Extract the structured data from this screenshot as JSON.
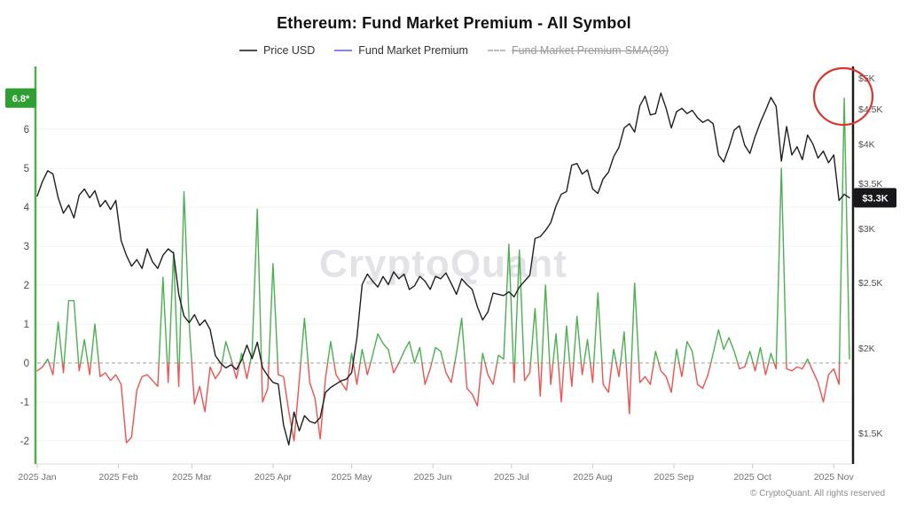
{
  "header": {
    "title": "Ethereum: Fund Market Premium - All Symbol"
  },
  "legend": {
    "items": [
      {
        "label": "Price USD",
        "color": "#4d4d4d",
        "style": "solid",
        "enabled": true
      },
      {
        "label": "Fund Market Premium",
        "color": "#8583ef",
        "style": "solid",
        "enabled": true
      },
      {
        "label": "Fund Market Premium-SMA(30)",
        "color": "#bdbdbd",
        "style": "dashed",
        "enabled": false
      }
    ]
  },
  "watermark": {
    "text": "CryptoQuant"
  },
  "footer": {
    "copyright": "© CryptoQuant. All rights reserved"
  },
  "badges": {
    "premium_peak": {
      "label": "6.8*",
      "value": 6.8,
      "bg": "#2f9e33",
      "fg": "#ffffff"
    },
    "price_last": {
      "label": "$3.3K",
      "value_usd": 3330,
      "bg": "#17171c",
      "fg": "#ffffff"
    }
  },
  "annotations": {
    "highlight_circle": {
      "target": "final premium spike",
      "color": "#e03131"
    }
  },
  "chart_data": {
    "type": "line",
    "title": "Ethereum: Fund Market Premium - All Symbol",
    "x_start_date": "2025-01-01",
    "x_end_date": "2025-11-07",
    "x_interval_days": 2,
    "total_days": 310,
    "x_tick_labels": [
      "2025 Jan",
      "2025 Feb",
      "2025 Mar",
      "2025 Apr",
      "2025 May",
      "2025 Jun",
      "2025 Jul",
      "2025 Aug",
      "2025 Sep",
      "2025 Oct",
      "2025 Nov"
    ],
    "x_tick_day_offsets": [
      0,
      31,
      59,
      90,
      120,
      151,
      181,
      212,
      243,
      273,
      304
    ],
    "grid": true,
    "legend_position": "top",
    "left_axis": {
      "label": "Fund Market Premium",
      "ticks": [
        6,
        5,
        4,
        3,
        2,
        1,
        0,
        -1,
        -2
      ],
      "range": [
        -2.6,
        7.4
      ],
      "zero_line_dashed": true,
      "axis_color": "#53ae4c",
      "max_badge": "6.8*"
    },
    "right_axis": {
      "label": "Price USD",
      "scale": "log",
      "tick_labels": [
        "$5K",
        "$4.5K",
        "$4K",
        "$3.5K",
        "$3K",
        "$2.5K",
        "$2K",
        "$1.5K"
      ],
      "tick_values_usd": [
        5000,
        4500,
        4000,
        3500,
        3000,
        2500,
        2000,
        1500
      ],
      "axis_color": "#1b1b1b",
      "last_badge": "$3.3K"
    },
    "series": [
      {
        "name": "Price USD",
        "axis": "right",
        "color": "#1f1f1f",
        "values": [
          3350,
          3520,
          3650,
          3610,
          3330,
          3160,
          3250,
          3110,
          3360,
          3430,
          3330,
          3410,
          3230,
          3300,
          3200,
          3300,
          2880,
          2740,
          2640,
          2700,
          2620,
          2800,
          2680,
          2620,
          2740,
          2800,
          2760,
          2400,
          2230,
          2180,
          2240,
          2160,
          2200,
          2130,
          1950,
          1900,
          1870,
          1890,
          1860,
          1920,
          2020,
          1930,
          2040,
          1870,
          1820,
          1780,
          1770,
          1540,
          1440,
          1610,
          1510,
          1590,
          1560,
          1550,
          1580,
          1720,
          1750,
          1770,
          1790,
          1800,
          1840,
          2070,
          2480,
          2570,
          2510,
          2460,
          2550,
          2480,
          2590,
          2530,
          2570,
          2440,
          2470,
          2550,
          2510,
          2440,
          2550,
          2530,
          2580,
          2490,
          2400,
          2530,
          2480,
          2440,
          2300,
          2200,
          2260,
          2410,
          2400,
          2390,
          2420,
          2380,
          2460,
          2510,
          2560,
          2900,
          2920,
          2980,
          3060,
          3240,
          3370,
          3400,
          3720,
          3740,
          3610,
          3660,
          3430,
          3380,
          3550,
          3630,
          3830,
          3950,
          4220,
          4280,
          4160,
          4550,
          4700,
          4410,
          4430,
          4750,
          4510,
          4220,
          4460,
          4510,
          4430,
          4480,
          4370,
          4300,
          4340,
          4280,
          3850,
          3760,
          3950,
          4190,
          4250,
          3980,
          3870,
          4100,
          4300,
          4480,
          4680,
          4540,
          3770,
          4240,
          3850,
          3960,
          3790,
          4120,
          4000,
          3810,
          3900,
          3750,
          3850,
          3300,
          3370,
          3330
        ]
      },
      {
        "name": "Fund Market Premium",
        "axis": "left",
        "color_positive": "#4caf50",
        "color_negative": "#ef5350",
        "values": [
          -0.2,
          -0.1,
          0.1,
          -0.3,
          1.05,
          -0.25,
          1.6,
          1.6,
          -0.2,
          0.6,
          -0.3,
          1.0,
          -0.35,
          -0.25,
          -0.45,
          -0.3,
          -0.55,
          -2.05,
          -1.9,
          -0.7,
          -0.35,
          -0.3,
          -0.45,
          -0.6,
          2.2,
          -0.5,
          2.85,
          -0.6,
          4.4,
          1.0,
          -1.05,
          -0.6,
          -1.25,
          -0.1,
          -0.4,
          -0.2,
          0.55,
          0.1,
          -0.4,
          0.25,
          -0.4,
          0.25,
          3.95,
          -1.0,
          -0.65,
          2.55,
          -0.3,
          -0.35,
          -1.25,
          -2.0,
          -0.45,
          1.15,
          -0.5,
          -0.9,
          -1.95,
          -0.4,
          0.55,
          -0.3,
          -0.5,
          -0.7,
          0.25,
          -0.55,
          0.35,
          -0.3,
          0.2,
          0.75,
          0.5,
          0.35,
          -0.25,
          0.0,
          0.3,
          0.55,
          0.0,
          0.4,
          -0.55,
          -0.15,
          0.4,
          0.3,
          -0.25,
          -0.5,
          0.25,
          1.15,
          -0.65,
          -0.8,
          -1.1,
          0.25,
          -0.3,
          -0.55,
          0.2,
          0.1,
          3.05,
          -0.5,
          2.9,
          -0.45,
          -0.25,
          1.4,
          -0.85,
          2.0,
          -0.55,
          0.75,
          -1.0,
          0.95,
          -0.6,
          1.2,
          -0.3,
          0.6,
          -0.5,
          1.8,
          -0.55,
          -0.75,
          0.35,
          -0.35,
          0.8,
          -1.3,
          2.05,
          -0.5,
          -0.35,
          -0.55,
          0.3,
          -0.2,
          -0.35,
          -0.75,
          0.35,
          -0.35,
          0.55,
          0.3,
          -0.55,
          -0.65,
          -0.3,
          0.25,
          0.85,
          0.35,
          0.65,
          0.3,
          -0.15,
          -0.1,
          0.3,
          -0.2,
          0.4,
          -0.3,
          0.25,
          -0.15,
          5.0,
          -0.15,
          -0.2,
          -0.1,
          -0.15,
          0.1,
          -0.2,
          -0.5,
          -1.0,
          -0.3,
          -0.15,
          -0.55,
          6.8,
          0.1
        ]
      }
    ]
  }
}
